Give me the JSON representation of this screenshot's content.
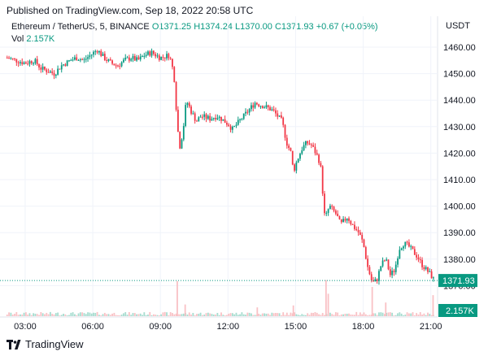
{
  "header": {
    "published": "Published on TradingView.com, Sep 18, 2022 20:58 UTC"
  },
  "legend": {
    "symbol": "Ethereum / TetherUS, 5, BINANCE",
    "open": "O1371.25",
    "high": "H1374.24",
    "low": "L1370.00",
    "close": "C1371.93",
    "change": "+0.67 (+0.05%)",
    "vol_label": "Vol",
    "vol_value": "2.157K"
  },
  "axis": {
    "unit": "USDT"
  },
  "footer": {
    "brand": "TradingView"
  },
  "colors": {
    "up": "#089981",
    "down": "#f23645",
    "up_vol": "#a6dccf",
    "down_vol": "#f9c1c5",
    "last_price_bg": "#089981"
  },
  "chart_data": {
    "type": "candlestick",
    "title": "",
    "ylabel": "USDT",
    "ylim": [
      1366,
      1464
    ],
    "y_ticks": [
      1460,
      1450,
      1440,
      1430,
      1420,
      1410,
      1400,
      1390,
      1380,
      1370
    ],
    "y_tick_labels": [
      "1460.00",
      "1450.00",
      "1440.00",
      "1430.00",
      "1420.00",
      "1410.00",
      "1400.00",
      "1390.00",
      "1380.00",
      "1370.00"
    ],
    "x_ticks": [
      3,
      6,
      9,
      12,
      15,
      18,
      21
    ],
    "x_tick_labels": [
      "03:00",
      "06:00",
      "09:00",
      "12:00",
      "15:00",
      "18:00",
      "21:00"
    ],
    "xlim_hours": [
      2.1,
      21.3
    ],
    "last_price": 1371.93,
    "last_price_label": "1371.93",
    "last_volume_label": "2.157K",
    "close_path": [
      [
        2.2,
        1456
      ],
      [
        2.6,
        1455
      ],
      [
        3.0,
        1454
      ],
      [
        3.4,
        1455
      ],
      [
        3.7,
        1452
      ],
      [
        4.0,
        1451
      ],
      [
        4.3,
        1450
      ],
      [
        4.6,
        1453
      ],
      [
        5.0,
        1455
      ],
      [
        5.3,
        1456
      ],
      [
        5.6,
        1455
      ],
      [
        5.9,
        1457
      ],
      [
        6.2,
        1459
      ],
      [
        6.5,
        1456
      ],
      [
        6.8,
        1454
      ],
      [
        7.1,
        1453
      ],
      [
        7.4,
        1455
      ],
      [
        7.7,
        1456
      ],
      [
        8.0,
        1455
      ],
      [
        8.3,
        1457
      ],
      [
        8.6,
        1458
      ],
      [
        9.0,
        1456
      ],
      [
        9.4,
        1457
      ],
      [
        9.6,
        1450
      ],
      [
        9.75,
        1431
      ],
      [
        9.85,
        1422
      ],
      [
        10.0,
        1428
      ],
      [
        10.15,
        1440
      ],
      [
        10.35,
        1436
      ],
      [
        10.6,
        1432
      ],
      [
        10.8,
        1434
      ],
      [
        11.2,
        1433
      ],
      [
        11.5,
        1434
      ],
      [
        11.7,
        1433
      ],
      [
        12.0,
        1431
      ],
      [
        12.2,
        1429
      ],
      [
        12.4,
        1431
      ],
      [
        12.7,
        1434
      ],
      [
        13.0,
        1437
      ],
      [
        13.2,
        1439
      ],
      [
        13.5,
        1438
      ],
      [
        13.8,
        1437
      ],
      [
        14.0,
        1436
      ],
      [
        14.2,
        1434
      ],
      [
        14.4,
        1432
      ],
      [
        14.6,
        1424
      ],
      [
        14.8,
        1420
      ],
      [
        14.9,
        1413
      ],
      [
        15.1,
        1418
      ],
      [
        15.3,
        1422
      ],
      [
        15.5,
        1424
      ],
      [
        15.7,
        1423
      ],
      [
        15.9,
        1420
      ],
      [
        16.1,
        1416
      ],
      [
        16.3,
        1395
      ],
      [
        16.5,
        1400
      ],
      [
        16.8,
        1397
      ],
      [
        17.0,
        1393
      ],
      [
        17.3,
        1396
      ],
      [
        17.5,
        1393
      ],
      [
        17.8,
        1390
      ],
      [
        18.0,
        1386
      ],
      [
        18.2,
        1377
      ],
      [
        18.4,
        1371
      ],
      [
        18.6,
        1372
      ],
      [
        18.8,
        1378
      ],
      [
        19.0,
        1380
      ],
      [
        19.2,
        1374
      ],
      [
        19.4,
        1376
      ],
      [
        19.6,
        1384
      ],
      [
        19.8,
        1386
      ],
      [
        20.0,
        1385
      ],
      [
        20.2,
        1383
      ],
      [
        20.4,
        1381
      ],
      [
        20.6,
        1378
      ],
      [
        20.8,
        1376
      ],
      [
        21.0,
        1374
      ],
      [
        21.15,
        1371.93
      ]
    ],
    "volume_ylim": [
      0,
      5000
    ],
    "volume_spikes": [
      [
        9.75,
        3600
      ],
      [
        10.1,
        1200
      ],
      [
        13.3,
        900
      ],
      [
        14.9,
        1100
      ],
      [
        16.35,
        3700
      ],
      [
        16.45,
        2300
      ],
      [
        18.4,
        3000
      ],
      [
        19.0,
        1400
      ],
      [
        21.1,
        2157
      ]
    ]
  }
}
